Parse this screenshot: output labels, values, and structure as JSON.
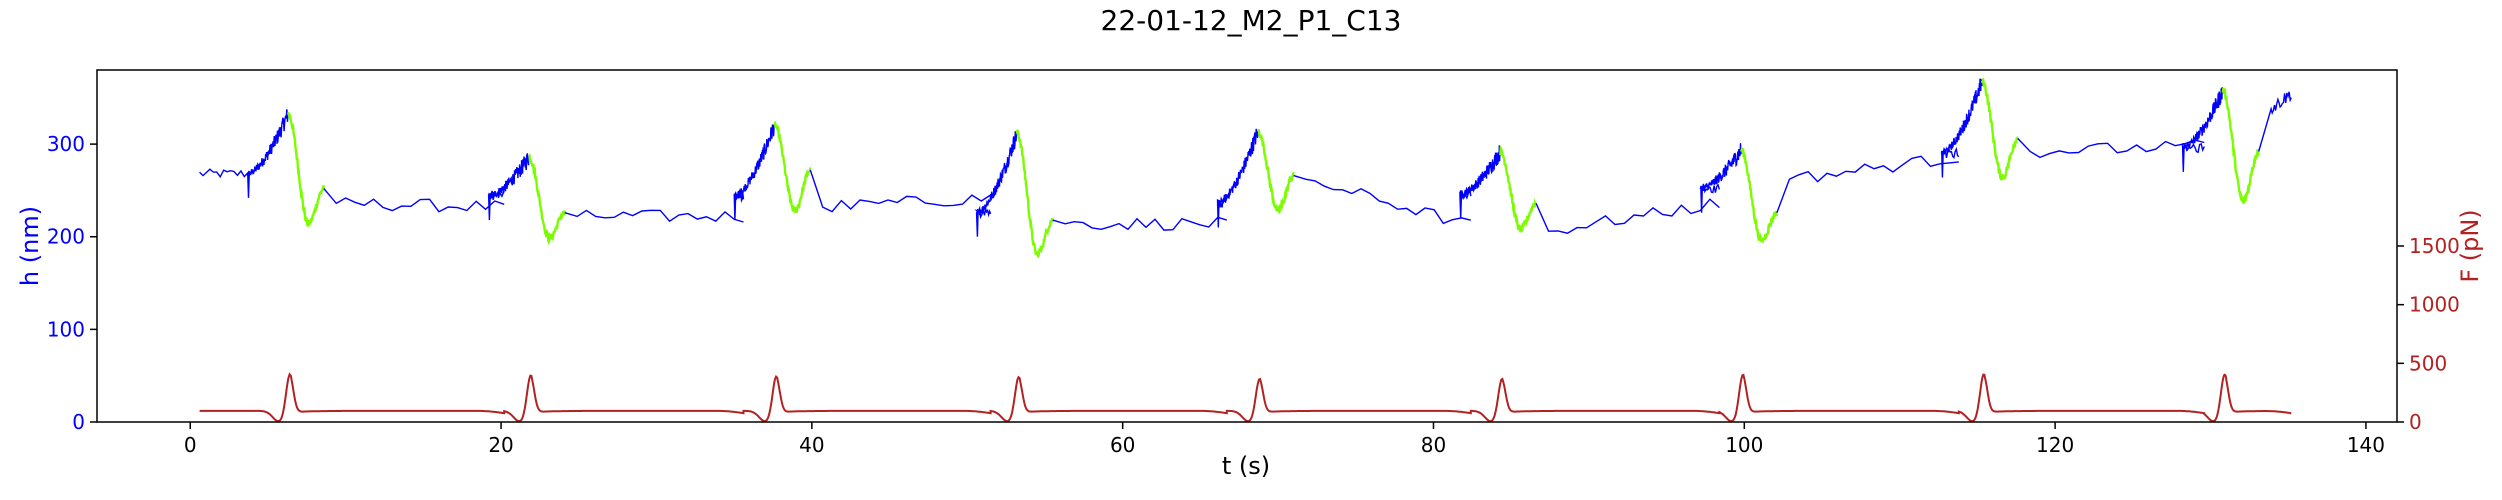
{
  "chart_data": {
    "type": "line",
    "title": "22-01-12_M2_P1_C13",
    "xlabel": "t (s)",
    "ylabel_left": "h (nm)",
    "ylabel_right": "F (pN)",
    "xlim": [
      -6,
      142
    ],
    "ylim_left": [
      0,
      380
    ],
    "ylim_right": [
      0,
      3000
    ],
    "xticks": [
      0,
      20,
      40,
      60,
      80,
      100,
      120,
      140
    ],
    "yticks_left": [
      0,
      100,
      200,
      300
    ],
    "yticks_right": [
      0,
      500,
      1000,
      1500
    ],
    "grid": false,
    "colors": {
      "height": "#0000ff",
      "height_highlight": "#7cfc00",
      "force": "#b22222",
      "axis_left": "#0000ff",
      "axis_right": "#b22222"
    },
    "cycles": [
      {
        "t0": 0.6,
        "tp": 6.3,
        "bh": 268,
        "ph": 333,
        "mh": 214,
        "rh": 252,
        "mh2": 236,
        "plat": 232,
        "tend": 20.2,
        "fpeak": 365
      },
      {
        "t0": 20.2,
        "tp": 21.8,
        "bh": 244,
        "ph": 286,
        "mh": 198,
        "rh": 226,
        "mh2": 222,
        "plat": 222,
        "tend": 35.6,
        "fpeak": 355
      },
      {
        "t0": 35.6,
        "tp": 37.6,
        "bh": 244,
        "ph": 321,
        "mh": 228,
        "rh": 272,
        "mh2": 232,
        "plat": 242,
        "tend": 51.5,
        "fpeak": 345
      },
      {
        "t0": 51.5,
        "tp": 53.2,
        "bh": 226,
        "ph": 312,
        "mh": 181,
        "rh": 218,
        "mh2": 214,
        "plat": 214,
        "tend": 66.7,
        "fpeak": 340
      },
      {
        "t0": 66.7,
        "tp": 68.7,
        "bh": 236,
        "ph": 314,
        "mh": 228,
        "rh": 266,
        "mh2": 262,
        "plat": 212,
        "tend": 82.4,
        "fpeak": 325
      },
      {
        "t0": 82.4,
        "tp": 84.3,
        "bh": 246,
        "ph": 292,
        "mh": 208,
        "rh": 236,
        "mh2": 206,
        "plat": 236,
        "tend": 98.4,
        "fpeak": 325
      },
      {
        "t0": 98.4,
        "tp": 99.8,
        "bh": 252,
        "ph": 294,
        "mh": 196,
        "rh": 226,
        "mh2": 262,
        "plat": 286,
        "tend": 113.8,
        "fpeak": 360
      },
      {
        "t0": 113.8,
        "tp": 115.3,
        "bh": 290,
        "ph": 368,
        "mh": 264,
        "rh": 306,
        "mh2": 292,
        "plat": 298,
        "tend": 129.6,
        "fpeak": 365
      },
      {
        "t0": 129.6,
        "tp": 130.8,
        "bh": 296,
        "ph": 358,
        "mh": 238,
        "rh": 292,
        "mh2": 338,
        "plat": 355,
        "tend": 135.2,
        "fpeak": 360
      }
    ]
  }
}
